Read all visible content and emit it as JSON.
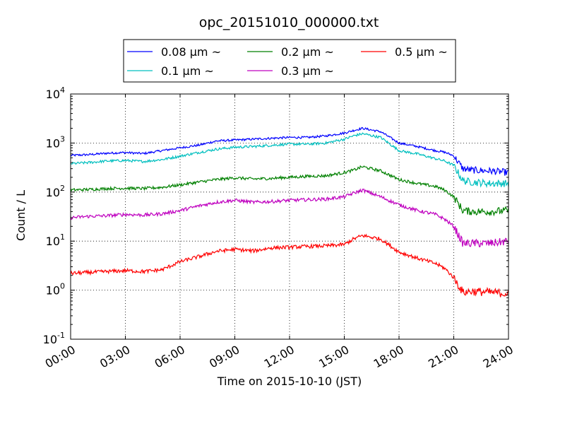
{
  "chart_data": {
    "type": "line",
    "title": "opc_20151010_000000.txt",
    "xlabel": "Time on 2015-10-10 (JST)",
    "ylabel": "Count / L",
    "yscale": "log",
    "ylim": [
      0.1,
      10000
    ],
    "xlim_hours": [
      0,
      24
    ],
    "grid": true,
    "legend": "top-center",
    "x_tick_labels": [
      "00:00",
      "03:00",
      "06:00",
      "09:00",
      "12:00",
      "15:00",
      "18:00",
      "21:00",
      "24:00"
    ],
    "x_ticks_hours": [
      0,
      3,
      6,
      9,
      12,
      15,
      18,
      21,
      24
    ],
    "y_ticks": [
      0.1,
      1,
      10,
      100,
      1000,
      10000
    ],
    "y_tick_labels": [
      {
        "base": "10",
        "exp": "-1"
      },
      {
        "base": "10",
        "exp": "0"
      },
      {
        "base": "10",
        "exp": "1"
      },
      {
        "base": "10",
        "exp": "2"
      },
      {
        "base": "10",
        "exp": "3"
      },
      {
        "base": "10",
        "exp": "4"
      }
    ],
    "x_hours": [
      0,
      1,
      2,
      3,
      4,
      5,
      6,
      7,
      8,
      9,
      10,
      11,
      12,
      13,
      14,
      15,
      15.5,
      16,
      17,
      18,
      19,
      20,
      20.5,
      21,
      21.5,
      22,
      23,
      24
    ],
    "series": [
      {
        "name": "0.08 μm ~",
        "color": "#0000ff",
        "values": [
          560,
          580,
          620,
          640,
          610,
          700,
          800,
          900,
          1100,
          1150,
          1200,
          1250,
          1300,
          1300,
          1400,
          1600,
          1800,
          2000,
          1700,
          1000,
          850,
          700,
          650,
          550,
          300,
          280,
          270,
          250
        ]
      },
      {
        "name": "0.1 μm ~",
        "color": "#00bfbf",
        "values": [
          380,
          400,
          430,
          440,
          420,
          460,
          540,
          640,
          750,
          820,
          850,
          900,
          950,
          950,
          1000,
          1200,
          1400,
          1550,
          1300,
          700,
          600,
          480,
          430,
          350,
          170,
          160,
          150,
          150
        ]
      },
      {
        "name": "0.2 μm ~",
        "color": "#008000",
        "values": [
          110,
          113,
          118,
          120,
          118,
          125,
          140,
          160,
          180,
          195,
          185,
          190,
          200,
          210,
          215,
          250,
          280,
          330,
          270,
          180,
          150,
          130,
          110,
          80,
          42,
          40,
          40,
          42
        ]
      },
      {
        "name": "0.3 μm ~",
        "color": "#bf00bf",
        "values": [
          30,
          32,
          33,
          35,
          34,
          36,
          42,
          52,
          62,
          68,
          62,
          64,
          68,
          70,
          72,
          80,
          95,
          110,
          80,
          55,
          42,
          35,
          28,
          20,
          9,
          9,
          9,
          10
        ]
      },
      {
        "name": "0.5 μm ~",
        "color": "#ff0000",
        "values": [
          2.2,
          2.3,
          2.4,
          2.5,
          2.4,
          2.6,
          3.8,
          4.8,
          6.2,
          6.8,
          6.3,
          7.3,
          7.5,
          7.8,
          8.0,
          8.5,
          11,
          13,
          11,
          6.0,
          4.5,
          3.5,
          2.8,
          1.8,
          0.9,
          0.95,
          0.9,
          0.85
        ]
      }
    ]
  }
}
